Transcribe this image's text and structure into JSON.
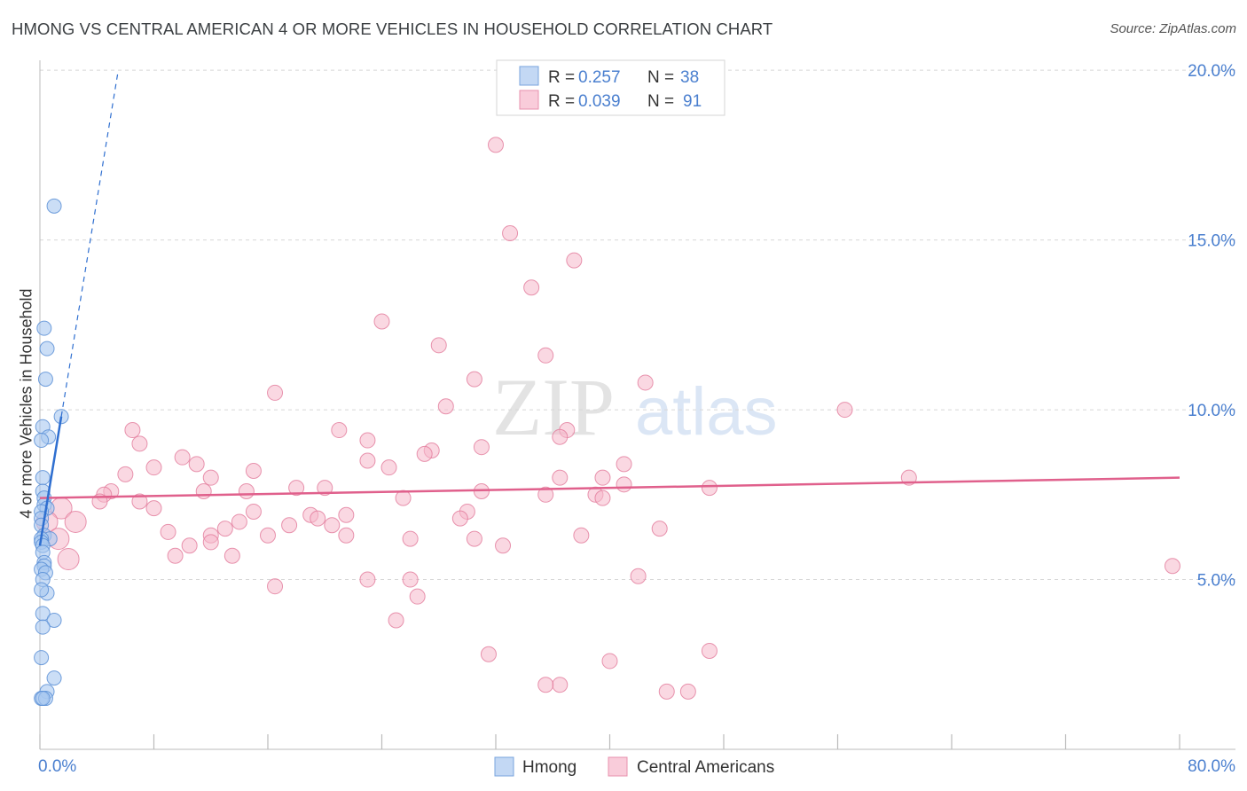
{
  "title": "HMONG VS CENTRAL AMERICAN 4 OR MORE VEHICLES IN HOUSEHOLD CORRELATION CHART",
  "source": "Source: ZipAtlas.com",
  "watermark": {
    "zip": "ZIP",
    "atlas": "atlas"
  },
  "legend": {
    "hmong": {
      "r_label": "R = ",
      "r_value": "0.257",
      "n_label": "N = ",
      "n_value": "38"
    },
    "central": {
      "r_label": "R = ",
      "r_value": "0.039",
      "n_label": "N = ",
      "n_value": "91"
    }
  },
  "bottom_legend": {
    "hmong": "Hmong",
    "central": "Central Americans"
  },
  "colors": {
    "hmong_fill": "#a9c8f0",
    "hmong_stroke": "#5b8fd6",
    "hmong_line": "#2f6fd0",
    "central_fill": "#f6b8cb",
    "central_stroke": "#e27a9b",
    "central_line": "#e0608c",
    "grid": "#d8d8d8",
    "tick_text": "#4a7fcf"
  },
  "chart_data": {
    "type": "scatter",
    "title": "HMONG VS CENTRAL AMERICAN 4 OR MORE VEHICLES IN HOUSEHOLD CORRELATION CHART",
    "xlabel": "",
    "ylabel": "4 or more Vehicles in Household",
    "xlim": [
      0,
      80
    ],
    "ylim": [
      0,
      20.5
    ],
    "x_tick_labels": [
      "0.0%",
      "80.0%"
    ],
    "y_ticks": [
      5,
      10,
      15,
      20
    ],
    "y_tick_labels": [
      "5.0%",
      "10.0%",
      "15.0%",
      "20.0%"
    ],
    "series": [
      {
        "name": "Hmong",
        "points": [
          [
            1.0,
            16.0
          ],
          [
            0.3,
            12.4
          ],
          [
            0.5,
            11.8
          ],
          [
            0.4,
            10.9
          ],
          [
            1.5,
            9.8
          ],
          [
            0.2,
            9.5
          ],
          [
            0.6,
            9.2
          ],
          [
            0.1,
            9.1
          ],
          [
            0.2,
            8.0
          ],
          [
            0.2,
            7.6
          ],
          [
            0.3,
            7.4
          ],
          [
            0.3,
            7.2
          ],
          [
            0.5,
            7.1
          ],
          [
            0.1,
            7.0
          ],
          [
            0.1,
            6.8
          ],
          [
            0.1,
            6.6
          ],
          [
            0.3,
            6.3
          ],
          [
            0.7,
            6.2
          ],
          [
            0.1,
            6.2
          ],
          [
            0.1,
            6.1
          ],
          [
            0.2,
            6.0
          ],
          [
            0.2,
            5.8
          ],
          [
            0.3,
            5.5
          ],
          [
            0.3,
            5.4
          ],
          [
            0.1,
            5.3
          ],
          [
            0.4,
            5.2
          ],
          [
            0.2,
            5.0
          ],
          [
            0.5,
            4.6
          ],
          [
            0.1,
            4.7
          ],
          [
            0.2,
            4.0
          ],
          [
            1.0,
            3.8
          ],
          [
            0.2,
            3.6
          ],
          [
            0.1,
            2.7
          ],
          [
            1.0,
            2.1
          ],
          [
            0.5,
            1.7
          ],
          [
            0.1,
            1.5
          ],
          [
            0.4,
            1.5
          ],
          [
            0.2,
            1.5
          ]
        ],
        "trend": {
          "x1": 0.0,
          "y1": 6.0,
          "x2": 1.5,
          "y2": 9.8,
          "dash_x2": 5.5,
          "dash_y2": 20.0
        }
      },
      {
        "name": "Central Americans",
        "points": [
          [
            32.0,
            17.8
          ],
          [
            33.0,
            15.2
          ],
          [
            37.5,
            14.4
          ],
          [
            34.5,
            13.6
          ],
          [
            24.0,
            12.6
          ],
          [
            28.0,
            11.9
          ],
          [
            35.5,
            11.6
          ],
          [
            30.5,
            10.9
          ],
          [
            42.5,
            10.8
          ],
          [
            16.5,
            10.5
          ],
          [
            28.5,
            10.1
          ],
          [
            56.5,
            10.0
          ],
          [
            6.5,
            9.4
          ],
          [
            21.0,
            9.4
          ],
          [
            37.0,
            9.4
          ],
          [
            36.5,
            9.2
          ],
          [
            23.0,
            9.1
          ],
          [
            7.0,
            9.0
          ],
          [
            31.0,
            8.9
          ],
          [
            27.5,
            8.8
          ],
          [
            27.0,
            8.7
          ],
          [
            10.0,
            8.6
          ],
          [
            23.0,
            8.5
          ],
          [
            41.0,
            8.4
          ],
          [
            11.0,
            8.4
          ],
          [
            8.0,
            8.3
          ],
          [
            24.5,
            8.3
          ],
          [
            15.0,
            8.2
          ],
          [
            6.0,
            8.1
          ],
          [
            12.0,
            8.0
          ],
          [
            36.5,
            8.0
          ],
          [
            39.5,
            8.0
          ],
          [
            61.0,
            8.0
          ],
          [
            41.0,
            7.8
          ],
          [
            18.0,
            7.7
          ],
          [
            20.0,
            7.7
          ],
          [
            47.0,
            7.7
          ],
          [
            5.0,
            7.6
          ],
          [
            11.5,
            7.6
          ],
          [
            14.5,
            7.6
          ],
          [
            31.0,
            7.6
          ],
          [
            35.5,
            7.5
          ],
          [
            4.5,
            7.5
          ],
          [
            39.0,
            7.5
          ],
          [
            25.5,
            7.4
          ],
          [
            39.5,
            7.4
          ],
          [
            7.0,
            7.3
          ],
          [
            4.2,
            7.3
          ],
          [
            1.5,
            7.1
          ],
          [
            8.0,
            7.1
          ],
          [
            15.0,
            7.0
          ],
          [
            30.0,
            7.0
          ],
          [
            19.0,
            6.9
          ],
          [
            21.5,
            6.9
          ],
          [
            29.5,
            6.8
          ],
          [
            19.5,
            6.8
          ],
          [
            2.5,
            6.7
          ],
          [
            14.0,
            6.7
          ],
          [
            20.5,
            6.6
          ],
          [
            17.5,
            6.6
          ],
          [
            13.0,
            6.5
          ],
          [
            43.5,
            6.5
          ],
          [
            9.0,
            6.4
          ],
          [
            12.0,
            6.3
          ],
          [
            16.0,
            6.3
          ],
          [
            21.5,
            6.3
          ],
          [
            38.0,
            6.3
          ],
          [
            26.0,
            6.2
          ],
          [
            30.5,
            6.2
          ],
          [
            12.0,
            6.1
          ],
          [
            10.5,
            6.0
          ],
          [
            32.5,
            6.0
          ],
          [
            0.5,
            6.7
          ],
          [
            1.3,
            6.2
          ],
          [
            2.0,
            5.6
          ],
          [
            9.5,
            5.7
          ],
          [
            13.5,
            5.7
          ],
          [
            79.5,
            5.4
          ],
          [
            42.0,
            5.1
          ],
          [
            23.0,
            5.0
          ],
          [
            26.0,
            5.0
          ],
          [
            16.5,
            4.8
          ],
          [
            26.5,
            4.5
          ],
          [
            25.0,
            3.8
          ],
          [
            31.5,
            2.8
          ],
          [
            47.0,
            2.9
          ],
          [
            40.0,
            2.6
          ],
          [
            36.5,
            1.9
          ],
          [
            35.5,
            1.9
          ],
          [
            45.5,
            1.7
          ],
          [
            44.0,
            1.7
          ]
        ],
        "trend": {
          "x1": 0.0,
          "y1": 7.4,
          "x2": 80.0,
          "y2": 8.0
        }
      }
    ]
  }
}
